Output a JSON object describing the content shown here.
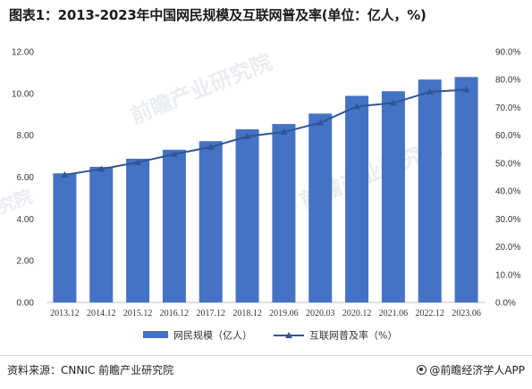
{
  "title": "图表1：2013-2023年中国网民规模及互联网普及率(单位：亿人，%)",
  "source": "资料来源：CNNIC 前瞻产业研究院",
  "brand": "@前瞻经济学人APP",
  "watermarks": [
    "前瞻产业研究院",
    "前瞻产业研究院",
    "究院"
  ],
  "colors": {
    "bar": "#4472c4",
    "line": "#2f5597",
    "axis": "#bfbfbf"
  },
  "chart_data": {
    "type": "bar",
    "categories": [
      "2013.12",
      "2014.12",
      "2015.12",
      "2016.12",
      "2017.12",
      "2018.12",
      "2019.06",
      "2020.03",
      "2020.12",
      "2021.06",
      "2022.12",
      "2023.06"
    ],
    "series": [
      {
        "name": "网民规模（亿人）",
        "type": "bar",
        "axis": "left",
        "values": [
          6.18,
          6.49,
          6.88,
          7.31,
          7.72,
          8.29,
          8.54,
          9.04,
          9.89,
          10.11,
          10.67,
          10.79
        ]
      },
      {
        "name": "互联网普及率（%）",
        "type": "line",
        "axis": "right",
        "marker": "triangle",
        "values": [
          45.8,
          47.9,
          50.3,
          53.2,
          55.8,
          59.6,
          61.2,
          64.5,
          70.4,
          71.6,
          75.6,
          76.4
        ]
      }
    ],
    "y_left": {
      "min": 0,
      "max": 12,
      "step": 2,
      "tick_labels": [
        "0.00",
        "2.00",
        "4.00",
        "6.00",
        "8.00",
        "10.00",
        "12.00"
      ]
    },
    "y_right": {
      "min": 0,
      "max": 90,
      "step": 10,
      "tick_labels": [
        "0.0%",
        "10.0%",
        "20.0%",
        "30.0%",
        "40.0%",
        "50.0%",
        "60.0%",
        "70.0%",
        "80.0%",
        "90.0%"
      ]
    },
    "grid": false,
    "legend": "bottom-center"
  }
}
